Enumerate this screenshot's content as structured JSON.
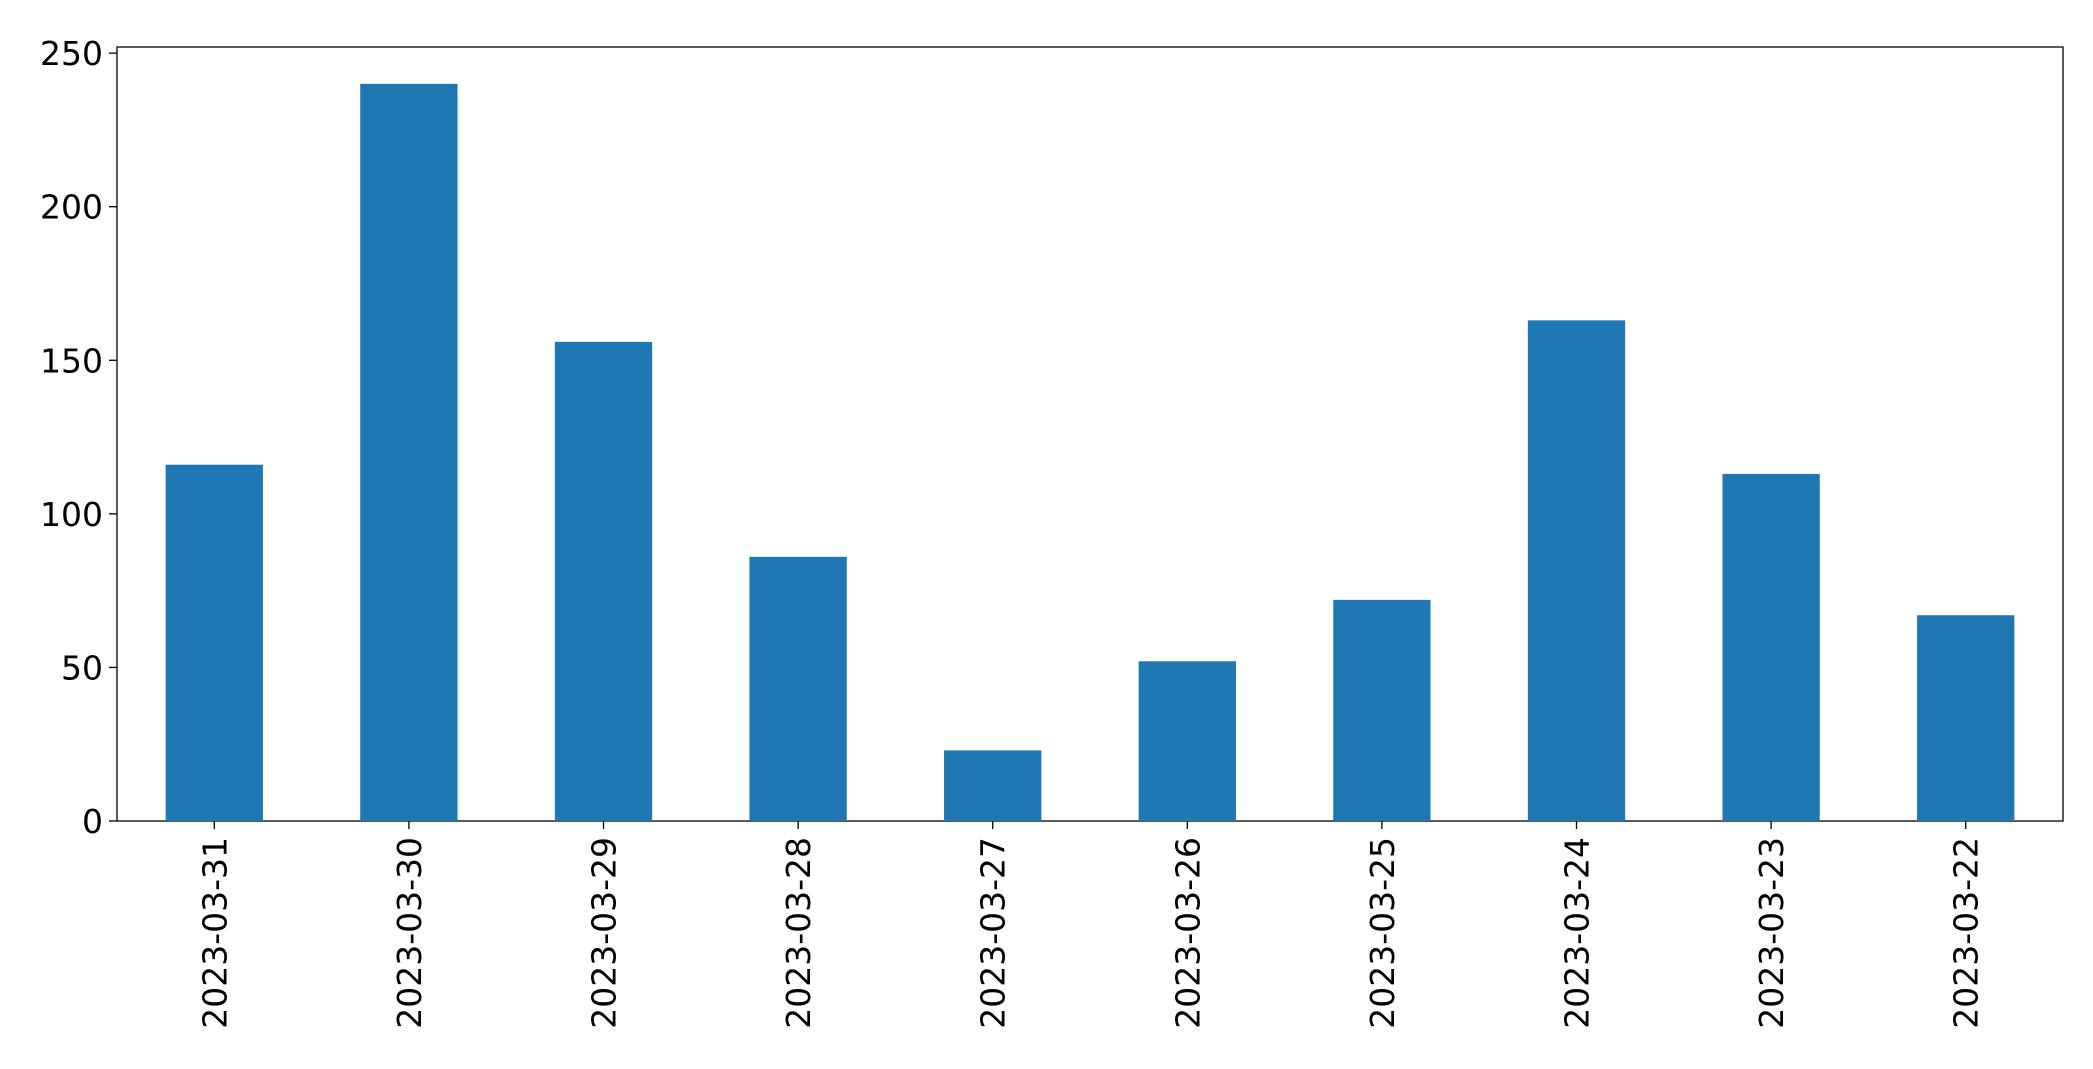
{
  "chart_data": {
    "type": "bar",
    "categories": [
      "2023-03-31",
      "2023-03-30",
      "2023-03-29",
      "2023-03-28",
      "2023-03-27",
      "2023-03-26",
      "2023-03-25",
      "2023-03-24",
      "2023-03-23",
      "2023-03-22"
    ],
    "values": [
      116,
      240,
      156,
      86,
      23,
      52,
      72,
      163,
      113,
      67
    ],
    "color": "#1f77b4",
    "ylim": [
      0,
      252
    ],
    "yticks": [
      0,
      50,
      100,
      150,
      200,
      250
    ],
    "grid": false
  }
}
